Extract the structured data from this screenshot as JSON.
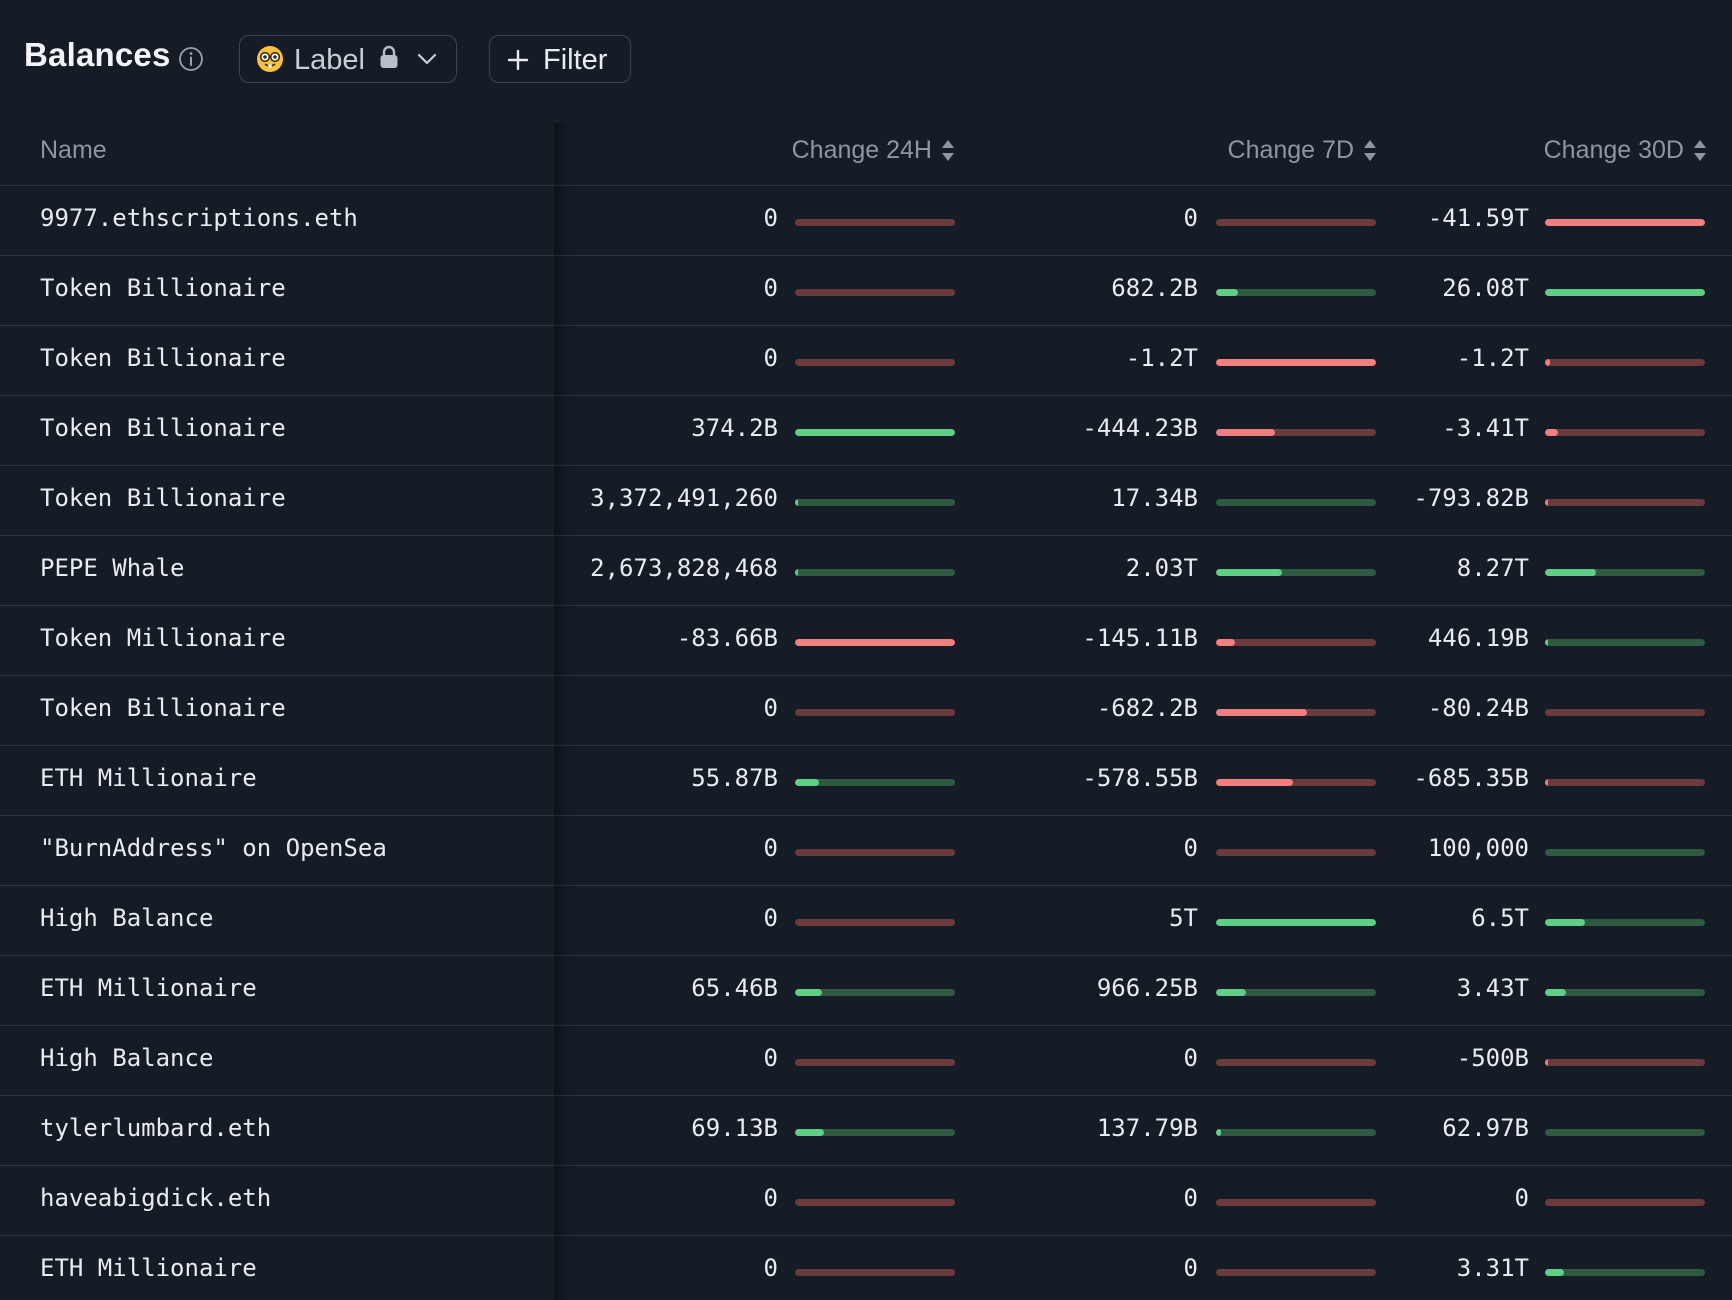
{
  "header": {
    "title": "Balances",
    "label_filter": "Label",
    "filter_button": "Filter"
  },
  "columns": {
    "name": "Name",
    "change_24h": "Change 24H",
    "change_7d": "Change 7D",
    "change_30d": "Change 30D"
  },
  "colors": {
    "background": "#151c26",
    "positive": "#5fcf86",
    "negative": "#f08080"
  },
  "rows": [
    {
      "name": "9977.ethscriptions.eth",
      "c24": {
        "text": "0",
        "sign": "neg",
        "fill": 0
      },
      "c7": {
        "text": "0",
        "sign": "neg",
        "fill": 0
      },
      "c30": {
        "text": "-41.59T",
        "sign": "neg",
        "fill": 1
      }
    },
    {
      "name": "Token Billionaire",
      "c24": {
        "text": "0",
        "sign": "neg",
        "fill": 0
      },
      "c7": {
        "text": "682.2B",
        "sign": "pos",
        "fill": 0.14
      },
      "c30": {
        "text": "26.08T",
        "sign": "pos",
        "fill": 1
      }
    },
    {
      "name": "Token Billionaire",
      "c24": {
        "text": "0",
        "sign": "neg",
        "fill": 0
      },
      "c7": {
        "text": "-1.2T",
        "sign": "neg",
        "fill": 1
      },
      "c30": {
        "text": "-1.2T",
        "sign": "neg",
        "fill": 0.03
      }
    },
    {
      "name": "Token Billionaire",
      "c24": {
        "text": "374.2B",
        "sign": "pos",
        "fill": 1
      },
      "c7": {
        "text": "-444.23B",
        "sign": "neg",
        "fill": 0.37
      },
      "c30": {
        "text": "-3.41T",
        "sign": "neg",
        "fill": 0.08
      }
    },
    {
      "name": "Token Billionaire",
      "c24": {
        "text": "3,372,491,260",
        "sign": "pos",
        "fill": 0.01
      },
      "c7": {
        "text": "17.34B",
        "sign": "pos",
        "fill": 0
      },
      "c30": {
        "text": "-793.82B",
        "sign": "neg",
        "fill": 0.02
      }
    },
    {
      "name": "PEPE Whale",
      "c24": {
        "text": "2,673,828,468",
        "sign": "pos",
        "fill": 0.01
      },
      "c7": {
        "text": "2.03T",
        "sign": "pos",
        "fill": 0.41
      },
      "c30": {
        "text": "8.27T",
        "sign": "pos",
        "fill": 0.32
      }
    },
    {
      "name": "Token Millionaire",
      "c24": {
        "text": "-83.66B",
        "sign": "neg",
        "fill": 1
      },
      "c7": {
        "text": "-145.11B",
        "sign": "neg",
        "fill": 0.12
      },
      "c30": {
        "text": "446.19B",
        "sign": "pos",
        "fill": 0.02
      }
    },
    {
      "name": "Token Billionaire",
      "c24": {
        "text": "0",
        "sign": "neg",
        "fill": 0
      },
      "c7": {
        "text": "-682.2B",
        "sign": "neg",
        "fill": 0.57
      },
      "c30": {
        "text": "-80.24B",
        "sign": "neg",
        "fill": 0
      }
    },
    {
      "name": "ETH Millionaire",
      "c24": {
        "text": "55.87B",
        "sign": "pos",
        "fill": 0.15
      },
      "c7": {
        "text": "-578.55B",
        "sign": "neg",
        "fill": 0.48
      },
      "c30": {
        "text": "-685.35B",
        "sign": "neg",
        "fill": 0.02
      }
    },
    {
      "name": "\"BurnAddress\" on OpenSea",
      "c24": {
        "text": "0",
        "sign": "neg",
        "fill": 0
      },
      "c7": {
        "text": "0",
        "sign": "neg",
        "fill": 0
      },
      "c30": {
        "text": "100,000",
        "sign": "pos",
        "fill": 0
      }
    },
    {
      "name": "High Balance",
      "c24": {
        "text": "0",
        "sign": "neg",
        "fill": 0
      },
      "c7": {
        "text": "5T",
        "sign": "pos",
        "fill": 1
      },
      "c30": {
        "text": "6.5T",
        "sign": "pos",
        "fill": 0.25
      }
    },
    {
      "name": "ETH Millionaire",
      "c24": {
        "text": "65.46B",
        "sign": "pos",
        "fill": 0.17
      },
      "c7": {
        "text": "966.25B",
        "sign": "pos",
        "fill": 0.19
      },
      "c30": {
        "text": "3.43T",
        "sign": "pos",
        "fill": 0.13
      }
    },
    {
      "name": "High Balance",
      "c24": {
        "text": "0",
        "sign": "neg",
        "fill": 0
      },
      "c7": {
        "text": "0",
        "sign": "neg",
        "fill": 0
      },
      "c30": {
        "text": "-500B",
        "sign": "neg",
        "fill": 0.01
      }
    },
    {
      "name": "tylerlumbard.eth",
      "c24": {
        "text": "69.13B",
        "sign": "pos",
        "fill": 0.18
      },
      "c7": {
        "text": "137.79B",
        "sign": "pos",
        "fill": 0.03
      },
      "c30": {
        "text": "62.97B",
        "sign": "pos",
        "fill": 0
      }
    },
    {
      "name": "haveabigdick.eth",
      "c24": {
        "text": "0",
        "sign": "neg",
        "fill": 0
      },
      "c7": {
        "text": "0",
        "sign": "neg",
        "fill": 0
      },
      "c30": {
        "text": "0",
        "sign": "neg",
        "fill": 0
      }
    },
    {
      "name": "ETH Millionaire",
      "c24": {
        "text": "0",
        "sign": "neg",
        "fill": 0
      },
      "c7": {
        "text": "0",
        "sign": "neg",
        "fill": 0
      },
      "c30": {
        "text": "3.31T",
        "sign": "pos",
        "fill": 0.12
      }
    }
  ]
}
